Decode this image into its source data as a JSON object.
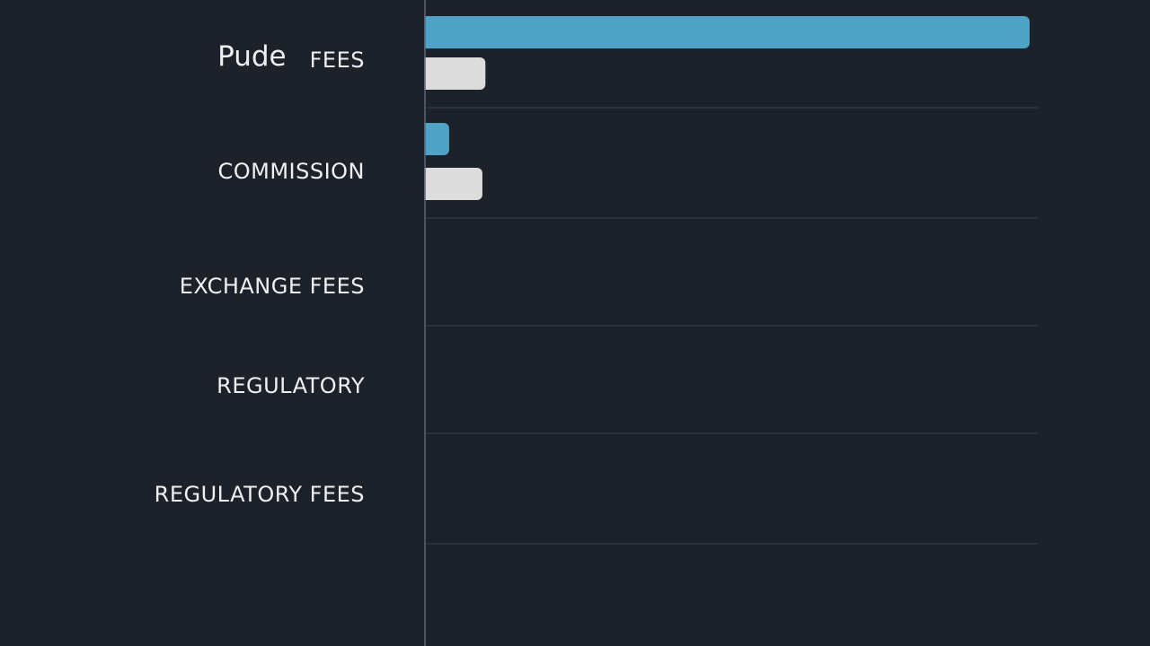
{
  "chart_data": {
    "type": "bar",
    "orientation": "horizontal",
    "categories": [
      "Pude FEES",
      "COMMISSION",
      "EXCHANGE FEES",
      "REGULATORY",
      "REGULATORY FEES"
    ],
    "category_parts": [
      {
        "brand": "Pude",
        "text": "FEES"
      },
      {
        "brand": "",
        "text": "COMMISSION"
      },
      {
        "brand": "",
        "text": "EXCHANGE FEES"
      },
      {
        "brand": "",
        "text": "REGULATORY"
      },
      {
        "brand": "",
        "text": "REGULATORY FEES"
      }
    ],
    "series": [
      {
        "values": [
          100,
          4,
          0,
          0,
          0
        ],
        "color": "#4ea3c7"
      },
      {
        "values": [
          10,
          9.5,
          0,
          0,
          0
        ],
        "color": "#dcdcdc"
      }
    ],
    "xlim": [
      0,
      100
    ],
    "grid": true,
    "legend": "none",
    "background": "#1d2129",
    "gridline_color": "#343943",
    "axis_color": "#5c6370"
  }
}
